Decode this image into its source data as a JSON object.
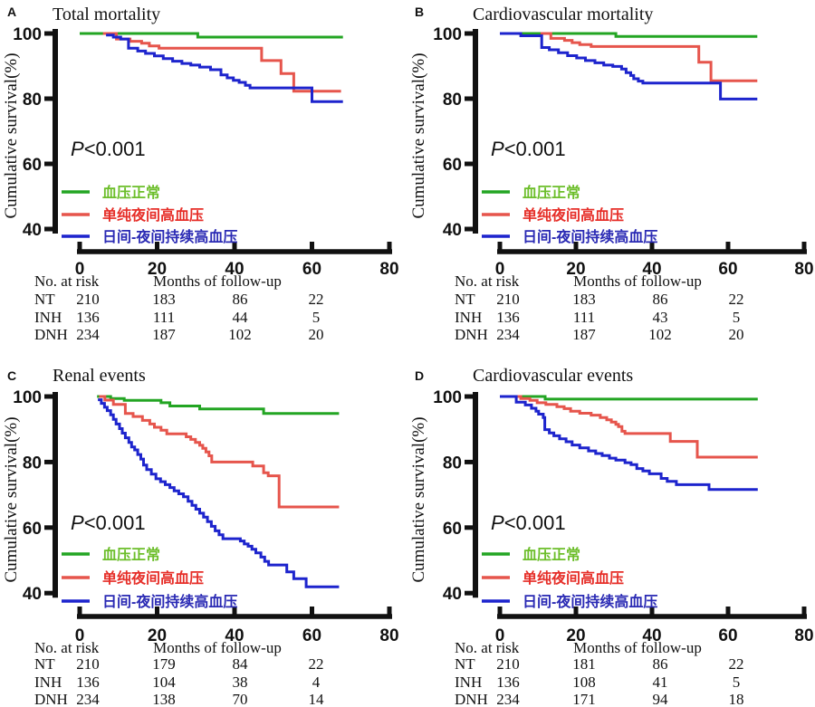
{
  "figure": {
    "background": "#ffffff",
    "axis_color": "#111111",
    "text_color": "#111111"
  },
  "chart_data": [
    {
      "type": "line",
      "panel_label": "A",
      "title": "Total mortality",
      "p_value": "P<0.001",
      "ylabel": "Cumulative survival(%)",
      "xlabel": "Months of follow-up",
      "xlim": [
        0,
        80
      ],
      "ylim": [
        40,
        100
      ],
      "xticks": [
        0,
        20,
        40,
        60,
        80
      ],
      "yticks": [
        100,
        80,
        60,
        40
      ],
      "grid": false,
      "legend_position": "inside-lower-left",
      "series": [
        {
          "key": "NT",
          "label": "血压正常",
          "color": "#23a523",
          "label_color": "#6cbe2a",
          "steps": [
            [
              0,
              100
            ],
            [
              30.5,
              98.9
            ]
          ],
          "end": 68
        },
        {
          "key": "INH",
          "label": "单纯夜间高血压",
          "color": "#e6554c",
          "label_color": "#e62e28",
          "steps": [
            [
              6,
              100
            ],
            [
              9.5,
              98.3
            ],
            [
              13,
              97.6
            ],
            [
              16,
              97.0
            ],
            [
              18,
              96.2
            ],
            [
              20.5,
              95.5
            ],
            [
              47,
              91.7
            ],
            [
              52,
              87.7
            ],
            [
              55.3,
              82.3
            ]
          ],
          "end": 67.5
        },
        {
          "key": "DNH",
          "label": "日间-夜间持续高血压",
          "color": "#1d24cd",
          "label_color": "#2a2ab4",
          "steps": [
            [
              6.8,
              99.5
            ],
            [
              8.7,
              98.9
            ],
            [
              10.6,
              98.3
            ],
            [
              12.6,
              95.5
            ],
            [
              15,
              94.6
            ],
            [
              17,
              93.9
            ],
            [
              19.3,
              93.1
            ],
            [
              21.6,
              92.3
            ],
            [
              24,
              91.5
            ],
            [
              26.4,
              90.8
            ],
            [
              28.7,
              90.3
            ],
            [
              31,
              89.7
            ],
            [
              33.8,
              88.9
            ],
            [
              36.5,
              87.3
            ],
            [
              38.1,
              86.4
            ],
            [
              39.7,
              85.6
            ],
            [
              41.2,
              85.0
            ],
            [
              42.8,
              84.1
            ],
            [
              44,
              83.3
            ],
            [
              60,
              79.1
            ]
          ],
          "end": 68
        }
      ],
      "risk_table": {
        "title": "No. at risk",
        "rows": [
          {
            "label": "NT",
            "values": [
              210,
              183,
              86,
              22
            ]
          },
          {
            "label": "INH",
            "values": [
              136,
              111,
              44,
              5
            ]
          },
          {
            "label": "DNH",
            "values": [
              234,
              187,
              102,
              20
            ]
          }
        ]
      }
    },
    {
      "type": "line",
      "panel_label": "B",
      "title": "Cardiovascular mortality",
      "p_value": "P<0.001",
      "ylabel": "Cumulative survival(%)",
      "xlabel": "Months of follow-up",
      "xlim": [
        0,
        80
      ],
      "ylim": [
        40,
        100
      ],
      "xticks": [
        0,
        20,
        40,
        60,
        80
      ],
      "yticks": [
        100,
        80,
        60,
        40
      ],
      "grid": false,
      "legend_position": "inside-lower-left",
      "series": [
        {
          "key": "NT",
          "label": "血压正常",
          "color": "#23a523",
          "label_color": "#6cbe2a",
          "steps": [
            [
              5,
              100
            ],
            [
              30.5,
              99.1
            ]
          ],
          "end": 67.7
        },
        {
          "key": "INH",
          "label": "单纯夜间高血压",
          "color": "#e6554c",
          "label_color": "#e62e28",
          "steps": [
            [
              10.7,
              100
            ],
            [
              13.4,
              98.5
            ],
            [
              17,
              97.9
            ],
            [
              19,
              97.2
            ],
            [
              21,
              96.6
            ],
            [
              24,
              96.0
            ],
            [
              52.3,
              91.2
            ],
            [
              55.5,
              85.5
            ]
          ],
          "end": 67.7
        },
        {
          "key": "DNH",
          "label": "日间-夜间持续高血压",
          "color": "#1d24cd",
          "label_color": "#2a2ab4",
          "steps": [
            [
              0,
              100
            ],
            [
              5.5,
              99.3
            ],
            [
              11,
              95.7
            ],
            [
              13,
              95.0
            ],
            [
              15.4,
              94.1
            ],
            [
              17.8,
              93.2
            ],
            [
              20.2,
              92.5
            ],
            [
              22.5,
              91.7
            ],
            [
              25,
              91.0
            ],
            [
              27.3,
              90.3
            ],
            [
              29.7,
              89.9
            ],
            [
              32,
              89.1
            ],
            [
              33.2,
              88.0
            ],
            [
              34.4,
              87.1
            ],
            [
              35.2,
              86.1
            ],
            [
              36.4,
              85.4
            ],
            [
              37.6,
              84.8
            ],
            [
              58,
              79.9
            ]
          ],
          "end": 67.7
        }
      ],
      "risk_table": {
        "title": "No. at risk",
        "rows": [
          {
            "label": "NT",
            "values": [
              210,
              183,
              86,
              22
            ]
          },
          {
            "label": "INH",
            "values": [
              136,
              111,
              43,
              5
            ]
          },
          {
            "label": "DNH",
            "values": [
              234,
              187,
              102,
              20
            ]
          }
        ]
      }
    },
    {
      "type": "line",
      "panel_label": "C",
      "title": "Renal events",
      "p_value": "P<0.001",
      "ylabel": "Cumulative survival(%)",
      "xlabel": "Months of follow-up",
      "xlim": [
        0,
        80
      ],
      "ylim": [
        40,
        100
      ],
      "xticks": [
        0,
        20,
        40,
        60,
        80
      ],
      "yticks": [
        100,
        80,
        60,
        40
      ],
      "grid": false,
      "legend_position": "inside-lower-left",
      "series": [
        {
          "key": "NT",
          "label": "血压正常",
          "color": "#23a523",
          "label_color": "#6cbe2a",
          "steps": [
            [
              4.5,
              100
            ],
            [
              8,
              99.4
            ],
            [
              11.5,
              98.8
            ],
            [
              21,
              98.1
            ],
            [
              23.3,
              97.1
            ],
            [
              31,
              96.2
            ],
            [
              47.5,
              94.8
            ]
          ],
          "end": 67
        },
        {
          "key": "INH",
          "label": "单纯夜间高血压",
          "color": "#e6554c",
          "label_color": "#e62e28",
          "steps": [
            [
              5,
              100
            ],
            [
              6.5,
              98.9
            ],
            [
              8.7,
              97.6
            ],
            [
              11.8,
              94.8
            ],
            [
              13.8,
              93.9
            ],
            [
              16.2,
              92.7
            ],
            [
              18.1,
              91.6
            ],
            [
              19.3,
              90.6
            ],
            [
              21,
              89.7
            ],
            [
              22.5,
              88.6
            ],
            [
              27.5,
              87.7
            ],
            [
              28.7,
              86.9
            ],
            [
              29.9,
              86.0
            ],
            [
              31,
              85.1
            ],
            [
              31.8,
              84.2
            ],
            [
              32.6,
              83.1
            ],
            [
              33.4,
              81.9
            ],
            [
              34.1,
              80.0
            ],
            [
              44.7,
              78.8
            ],
            [
              47.5,
              76.7
            ],
            [
              48.7,
              75.8
            ],
            [
              51.5,
              66.3
            ]
          ],
          "end": 67
        },
        {
          "key": "DNH",
          "label": "日间-夜间持续高血压",
          "color": "#1d24cd",
          "label_color": "#2a2ab4",
          "steps": [
            [
              4.7,
              99.0
            ],
            [
              5.6,
              97.9
            ],
            [
              6.4,
              96.7
            ],
            [
              7.1,
              95.7
            ],
            [
              8,
              94.4
            ],
            [
              8.7,
              93.0
            ],
            [
              9.4,
              91.6
            ],
            [
              10.3,
              90.2
            ],
            [
              11,
              88.8
            ],
            [
              11.8,
              87.4
            ],
            [
              12.7,
              86.0
            ],
            [
              13.4,
              84.6
            ],
            [
              14.2,
              83.7
            ],
            [
              15,
              82.3
            ],
            [
              15.8,
              80.9
            ],
            [
              16.5,
              79.1
            ],
            [
              17.3,
              77.7
            ],
            [
              18.5,
              76.3
            ],
            [
              19.7,
              74.9
            ],
            [
              20.9,
              74.0
            ],
            [
              22.1,
              73.1
            ],
            [
              23.3,
              72.2
            ],
            [
              24.4,
              71.2
            ],
            [
              25.6,
              70.3
            ],
            [
              26.8,
              69.4
            ],
            [
              28,
              68.0
            ],
            [
              29,
              66.8
            ],
            [
              30,
              65.6
            ],
            [
              31,
              64.4
            ],
            [
              32,
              63.2
            ],
            [
              33,
              61.8
            ],
            [
              34,
              60.4
            ],
            [
              35,
              59.0
            ],
            [
              36,
              57.8
            ],
            [
              37,
              56.6
            ],
            [
              41.5,
              55.9
            ],
            [
              42.5,
              55.0
            ],
            [
              43.5,
              54.3
            ],
            [
              44.5,
              53.4
            ],
            [
              45.5,
              52.3
            ],
            [
              46.8,
              51.0
            ],
            [
              47.8,
              49.7
            ],
            [
              48.8,
              48.6
            ],
            [
              53.5,
              46.5
            ],
            [
              55.3,
              44.4
            ],
            [
              58.5,
              41.9
            ]
          ],
          "end": 67
        }
      ],
      "risk_table": {
        "title": "No. at risk",
        "rows": [
          {
            "label": "NT",
            "values": [
              210,
              179,
              84,
              22
            ]
          },
          {
            "label": "INH",
            "values": [
              136,
              104,
              38,
              4
            ]
          },
          {
            "label": "DNH",
            "values": [
              234,
              138,
              70,
              14
            ]
          }
        ]
      }
    },
    {
      "type": "line",
      "panel_label": "D",
      "title": "Cardiovascular events",
      "p_value": "P<0.001",
      "ylabel": "Cumulative survival(%)",
      "xlabel": "Months of follow-up",
      "xlim": [
        0,
        80
      ],
      "ylim": [
        40,
        100
      ],
      "xticks": [
        0,
        20,
        40,
        60,
        80
      ],
      "yticks": [
        100,
        80,
        60,
        40
      ],
      "grid": false,
      "legend_position": "inside-lower-left",
      "series": [
        {
          "key": "NT",
          "label": "血压正常",
          "color": "#23a523",
          "label_color": "#6cbe2a",
          "steps": [
            [
              0,
              100
            ],
            [
              11.9,
              99.2
            ]
          ],
          "end": 67.8
        },
        {
          "key": "INH",
          "label": "单纯夜间高血压",
          "color": "#e6554c",
          "label_color": "#e62e28",
          "steps": [
            [
              4.5,
              100
            ],
            [
              5.5,
              99.4
            ],
            [
              7.9,
              98.8
            ],
            [
              9.8,
              98.1
            ],
            [
              12.1,
              97.6
            ],
            [
              15,
              96.9
            ],
            [
              16.9,
              96.3
            ],
            [
              18.6,
              95.5
            ],
            [
              21,
              94.9
            ],
            [
              24,
              94.3
            ],
            [
              26.4,
              93.6
            ],
            [
              28.1,
              92.9
            ],
            [
              29.3,
              92.2
            ],
            [
              30.5,
              91.5
            ],
            [
              31.2,
              90.8
            ],
            [
              32.1,
              89.4
            ],
            [
              32.9,
              88.7
            ],
            [
              44.8,
              86.3
            ],
            [
              51.9,
              81.5
            ]
          ],
          "end": 67.8
        },
        {
          "key": "DNH",
          "label": "日间-夜间持续高血压",
          "color": "#1d24cd",
          "label_color": "#2a2ab4",
          "steps": [
            [
              0,
              100
            ],
            [
              4.3,
              98.3
            ],
            [
              6.7,
              97.4
            ],
            [
              8.3,
              96.4
            ],
            [
              9.5,
              95.5
            ],
            [
              10.2,
              94.6
            ],
            [
              11.4,
              93.6
            ],
            [
              11.8,
              89.9
            ],
            [
              13,
              88.9
            ],
            [
              14.2,
              88.0
            ],
            [
              15.7,
              87.1
            ],
            [
              17.4,
              86.2
            ],
            [
              19,
              85.2
            ],
            [
              21,
              84.3
            ],
            [
              23.3,
              83.4
            ],
            [
              25.2,
              82.6
            ],
            [
              26.9,
              82.0
            ],
            [
              28.8,
              81.2
            ],
            [
              30.5,
              80.6
            ],
            [
              32.9,
              79.8
            ],
            [
              34.5,
              79.2
            ],
            [
              36,
              78.0
            ],
            [
              37.6,
              77.3
            ],
            [
              39.3,
              76.4
            ],
            [
              42.4,
              75.0
            ],
            [
              44,
              74.1
            ],
            [
              46.4,
              73.1
            ],
            [
              55,
              71.6
            ]
          ],
          "end": 67.8
        }
      ],
      "risk_table": {
        "title": "No. at risk",
        "rows": [
          {
            "label": "NT",
            "values": [
              210,
              181,
              86,
              22
            ]
          },
          {
            "label": "INH",
            "values": [
              136,
              108,
              41,
              5
            ]
          },
          {
            "label": "DNH",
            "values": [
              234,
              171,
              94,
              18
            ]
          }
        ]
      }
    }
  ]
}
